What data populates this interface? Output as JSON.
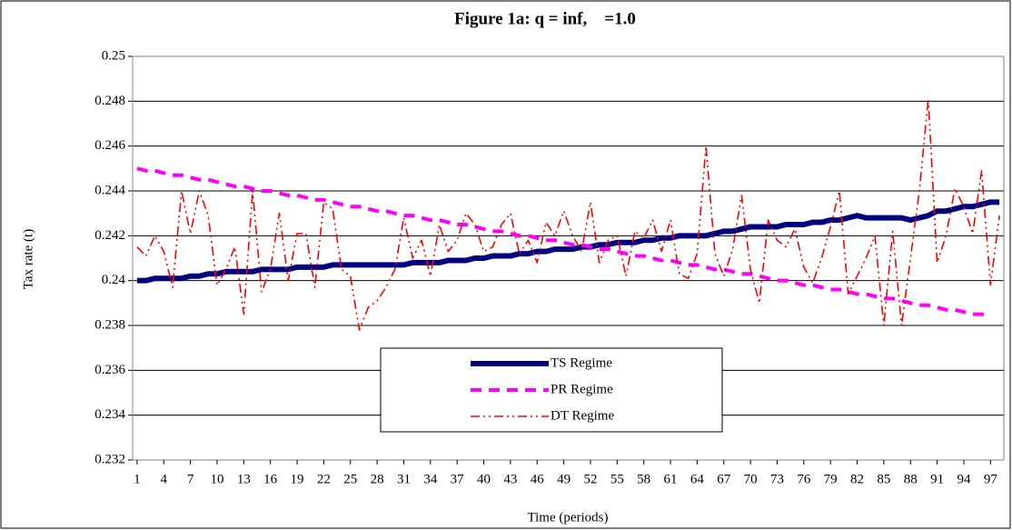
{
  "chart_data": {
    "type": "line",
    "title": "Figure 1a: q = inf,    =1.0",
    "x_label": "Time (periods)",
    "y_label": "Tax rate (t)",
    "x": [
      1,
      2,
      3,
      4,
      5,
      6,
      7,
      8,
      9,
      10,
      11,
      12,
      13,
      14,
      15,
      16,
      17,
      18,
      19,
      20,
      21,
      22,
      23,
      24,
      25,
      26,
      27,
      28,
      29,
      30,
      31,
      32,
      33,
      34,
      35,
      36,
      37,
      38,
      39,
      40,
      41,
      42,
      43,
      44,
      45,
      46,
      47,
      48,
      49,
      50,
      51,
      52,
      53,
      54,
      55,
      56,
      57,
      58,
      59,
      60,
      61,
      62,
      63,
      64,
      65,
      66,
      67,
      68,
      69,
      70,
      71,
      72,
      73,
      74,
      75,
      76,
      77,
      78,
      79,
      80,
      81,
      82,
      83,
      84,
      85,
      86,
      87,
      88,
      89,
      90,
      91,
      92,
      93,
      94,
      95,
      96,
      97,
      98
    ],
    "xlim": [
      0.5,
      98.5
    ],
    "xticks": [
      1,
      4,
      7,
      10,
      13,
      16,
      19,
      22,
      25,
      28,
      31,
      34,
      37,
      40,
      43,
      46,
      49,
      52,
      55,
      58,
      61,
      64,
      67,
      70,
      73,
      76,
      79,
      82,
      85,
      88,
      91,
      94,
      97
    ],
    "ylim": [
      0.232,
      0.25
    ],
    "yticks": [
      0.232,
      0.234,
      0.236,
      0.238,
      0.24,
      0.242,
      0.244,
      0.246,
      0.248,
      0.25
    ],
    "grid": true,
    "series": [
      {
        "name": "TS Regime",
        "color": "#000080",
        "style": "solid",
        "values": [
          0.24,
          0.24,
          0.2401,
          0.2401,
          0.2401,
          0.2401,
          0.2402,
          0.2402,
          0.2403,
          0.2403,
          0.2404,
          0.2404,
          0.2404,
          0.2404,
          0.2405,
          0.2405,
          0.2405,
          0.2405,
          0.2406,
          0.2406,
          0.2406,
          0.2406,
          0.2407,
          0.2407,
          0.2407,
          0.2407,
          0.2407,
          0.2407,
          0.2407,
          0.2407,
          0.2407,
          0.2408,
          0.2408,
          0.2408,
          0.2408,
          0.2409,
          0.2409,
          0.2409,
          0.241,
          0.241,
          0.2411,
          0.2411,
          0.2411,
          0.2412,
          0.2412,
          0.2413,
          0.2413,
          0.2414,
          0.2414,
          0.2414,
          0.2415,
          0.2415,
          0.2416,
          0.2416,
          0.2417,
          0.2417,
          0.2417,
          0.2418,
          0.2418,
          0.2419,
          0.2419,
          0.242,
          0.242,
          0.242,
          0.242,
          0.2421,
          0.2422,
          0.2422,
          0.2423,
          0.2424,
          0.2424,
          0.2424,
          0.2424,
          0.2425,
          0.2425,
          0.2425,
          0.2426,
          0.2426,
          0.2427,
          0.2427,
          0.2428,
          0.2429,
          0.2428,
          0.2428,
          0.2428,
          0.2428,
          0.2428,
          0.2427,
          0.2428,
          0.2429,
          0.2431,
          0.2431,
          0.2432,
          0.2433,
          0.2433,
          0.2434,
          0.2435,
          0.2435
        ]
      },
      {
        "name": "PR Regime",
        "color": "#ff00ff",
        "style": "dashed",
        "values": [
          0.245,
          0.2449,
          0.2449,
          0.2448,
          0.2447,
          0.2447,
          0.2446,
          0.2445,
          0.2445,
          0.2444,
          0.2443,
          0.2442,
          0.2442,
          0.2441,
          0.244,
          0.244,
          0.2439,
          0.2438,
          0.2438,
          0.2437,
          0.2436,
          0.2436,
          0.2435,
          0.2434,
          0.2433,
          0.2433,
          0.2432,
          0.2431,
          0.2431,
          0.243,
          0.2429,
          0.2429,
          0.2428,
          0.2427,
          0.2427,
          0.2426,
          0.2425,
          0.2425,
          0.2424,
          0.2423,
          0.2422,
          0.2422,
          0.2421,
          0.242,
          0.242,
          0.2419,
          0.2418,
          0.2418,
          0.2417,
          0.2416,
          0.2416,
          0.2415,
          0.2414,
          0.2414,
          0.2413,
          0.2412,
          0.2411,
          0.2411,
          0.241,
          0.2409,
          0.2409,
          0.2408,
          0.2407,
          0.2407,
          0.2406,
          0.2405,
          0.2405,
          0.2404,
          0.2403,
          0.2403,
          0.2402,
          0.2401,
          0.24,
          0.24,
          0.2399,
          0.2398,
          0.2398,
          0.2397,
          0.2396,
          0.2396,
          0.2395,
          0.2394,
          0.2394,
          0.2393,
          0.2392,
          0.2392,
          0.2391,
          0.239,
          0.2389,
          0.2389,
          0.2388,
          0.2387,
          0.2387,
          0.2386,
          0.2385,
          0.2385,
          0.2384,
          null
        ]
      },
      {
        "name": "DT Regime",
        "color": "#ff0000",
        "style": "dashdot",
        "values": [
          0.2415,
          0.2411,
          0.242,
          0.2413,
          0.2397,
          0.244,
          0.2421,
          0.244,
          0.2429,
          0.2398,
          0.2405,
          0.2415,
          0.2385,
          0.244,
          0.2395,
          0.2405,
          0.243,
          0.24,
          0.2421,
          0.2421,
          0.2397,
          0.2435,
          0.2432,
          0.2405,
          0.2402,
          0.2378,
          0.2388,
          0.2391,
          0.2397,
          0.2405,
          0.2428,
          0.241,
          0.2418,
          0.2402,
          0.2425,
          0.2413,
          0.2418,
          0.243,
          0.2425,
          0.2413,
          0.2415,
          0.2425,
          0.243,
          0.2412,
          0.2418,
          0.2408,
          0.2426,
          0.242,
          0.2431,
          0.242,
          0.2413,
          0.2435,
          0.2408,
          0.2418,
          0.242,
          0.2402,
          0.2422,
          0.2419,
          0.2427,
          0.2413,
          0.2427,
          0.2403,
          0.2401,
          0.2412,
          0.246,
          0.2412,
          0.2402,
          0.2414,
          0.2438,
          0.2405,
          0.239,
          0.2427,
          0.2418,
          0.2415,
          0.2423,
          0.2406,
          0.2399,
          0.241,
          0.2424,
          0.244,
          0.2394,
          0.2402,
          0.241,
          0.242,
          0.238,
          0.2422,
          0.238,
          0.241,
          0.244,
          0.2481,
          0.2408,
          0.242,
          0.2441,
          0.2433,
          0.2421,
          0.2449,
          0.2398,
          0.2429
        ]
      }
    ]
  }
}
